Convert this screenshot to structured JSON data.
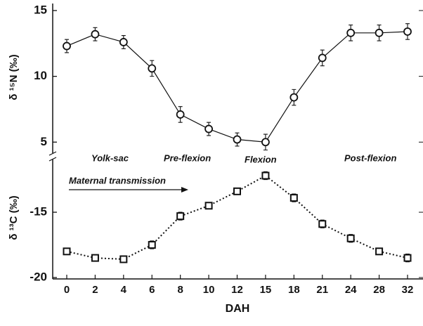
{
  "chart_data": [
    {
      "type": "line",
      "ylabel": "δ ¹⁵N (‰)",
      "categories": [
        "0",
        "2",
        "4",
        "6",
        "8",
        "10",
        "12",
        "15",
        "18",
        "21",
        "24",
        "28",
        "32"
      ],
      "ylim": [
        4,
        15
      ],
      "yticks": [
        5,
        10,
        15
      ],
      "series": [
        {
          "name": "δ15N",
          "color": "#111111",
          "marker": "circle",
          "linestyle": "solid",
          "values": [
            12.3,
            13.2,
            12.6,
            10.6,
            7.1,
            6.0,
            5.2,
            5.0,
            8.4,
            11.4,
            13.3,
            13.3,
            13.4
          ],
          "errors": [
            0.5,
            0.5,
            0.5,
            0.6,
            0.6,
            0.5,
            0.5,
            0.6,
            0.6,
            0.6,
            0.6,
            0.6,
            0.6
          ]
        }
      ],
      "annotations": [
        "Yolk-sac",
        "Pre-flexion",
        "Flexion",
        "Post-flexion"
      ]
    },
    {
      "type": "line",
      "ylabel": "δ ¹³C (‰)",
      "xlabel": "DAH",
      "categories": [
        "0",
        "2",
        "4",
        "6",
        "8",
        "10",
        "12",
        "15",
        "18",
        "21",
        "24",
        "28",
        "32"
      ],
      "ylim": [
        -20,
        -10.8
      ],
      "yticks": [
        -20,
        -15
      ],
      "series": [
        {
          "name": "δ13C",
          "color": "#111111",
          "marker": "square",
          "linestyle": "dotted",
          "values": [
            -18.0,
            -18.5,
            -18.6,
            -17.5,
            -15.3,
            -14.5,
            -13.4,
            -12.2,
            -13.9,
            -15.9,
            -17.0,
            -18.0,
            -18.5
          ],
          "errors": [
            0.2,
            0.2,
            0.2,
            0.3,
            0.3,
            0.2,
            0.2,
            0.3,
            0.3,
            0.3,
            0.3,
            0.2,
            0.3
          ]
        }
      ],
      "annotations": [
        "Maternal transmission"
      ]
    }
  ]
}
